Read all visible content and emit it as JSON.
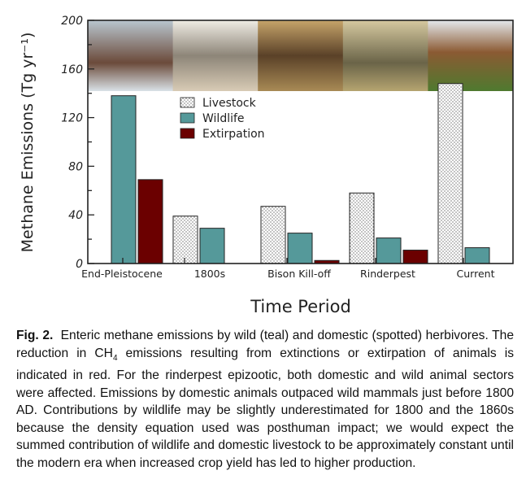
{
  "chart_data": {
    "type": "bar",
    "title": "",
    "xlabel": "Time Period",
    "ylabel": "Methane Emissions (Tg yr⁻¹)",
    "ylim": [
      0,
      200
    ],
    "yticks": [
      0,
      40,
      80,
      120,
      160,
      200
    ],
    "grid": false,
    "legend_placement": "top-left",
    "categories": [
      "End-Pleistocene",
      "1800s",
      "Bison Kill-off",
      "Rinderpest",
      "Current"
    ],
    "series": [
      {
        "name": "Livestock",
        "color": "#ffffff",
        "pattern": "dotted",
        "values": [
          null,
          39,
          47,
          58,
          148
        ]
      },
      {
        "name": "Wildlife",
        "color": "#55999a",
        "values": [
          138,
          29,
          25,
          21,
          13
        ]
      },
      {
        "name": "Extirpation",
        "color": "#6b0000",
        "values": [
          69,
          null,
          2.5,
          11,
          null
        ]
      }
    ],
    "photo_strip": [
      "woolly mammoths",
      "aurochs and wild horse",
      "bison",
      "zebras on savanna",
      "cattle"
    ]
  },
  "caption": {
    "label": "Fig. 2.",
    "text_1": "Enteric methane emissions by wild (teal) and domestic (spotted) herbivores. The reduction in CH",
    "subscript": "4",
    "text_2": " emissions resulting from extinctions or extirpation of animals is indicated in red. For the rinderpest epizootic, both domestic and wild animal sectors were affected. Emissions by domestic animals outpaced wild mammals just before 1800 AD. Contributions by wildlife may be slightly underestimated for 1800 and the 1860s because the density equation used was posthuman impact; we would expect the summed contribution of wildlife and domestic livestock to be approximately constant until the modern era when increased crop yield has led to higher production."
  }
}
